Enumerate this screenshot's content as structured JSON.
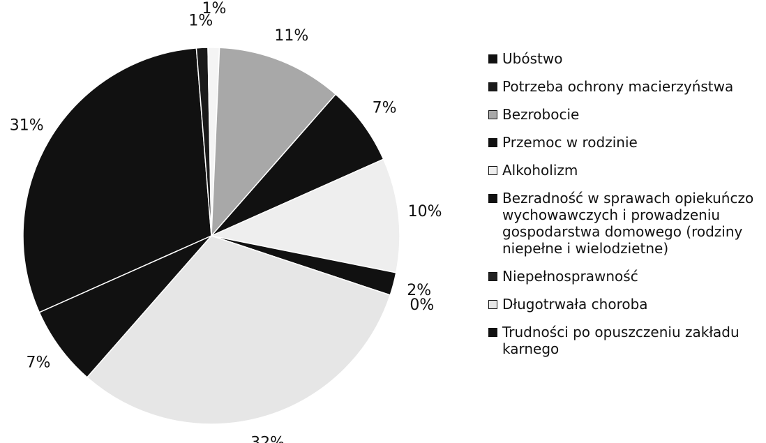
{
  "chart_data": {
    "type": "pie",
    "categories": [
      "Ubóstwo",
      "Potrzeba ochrony macierzyństwa",
      null,
      "Bezrobocie",
      "Przemoc w rodzinie",
      "Alkoholizm",
      "Bezradność w sprawach opiekuńczo wychowawczych i prowadzeniu gospodarstwa domowego (rodziny niepełne i wielodzietne)",
      "Niepełnosprawność",
      "Długotrwała choroba",
      "Trudności po opuszczeniu zakładu karnego"
    ],
    "values": [
      31,
      1,
      1,
      11,
      7,
      10,
      2,
      0,
      32,
      7
    ],
    "value_labels": [
      "31%",
      "1%",
      "1%",
      "11%",
      "7%",
      "10%",
      "2%",
      "0%",
      "32%",
      "7%"
    ],
    "colors": [
      "#111111",
      "#1a1a1a",
      "#f4f4f4",
      "#a8a8a8",
      "#111111",
      "#eeeeee",
      "#111111",
      "#222222",
      "#e6e6e6",
      "#111111"
    ]
  }
}
